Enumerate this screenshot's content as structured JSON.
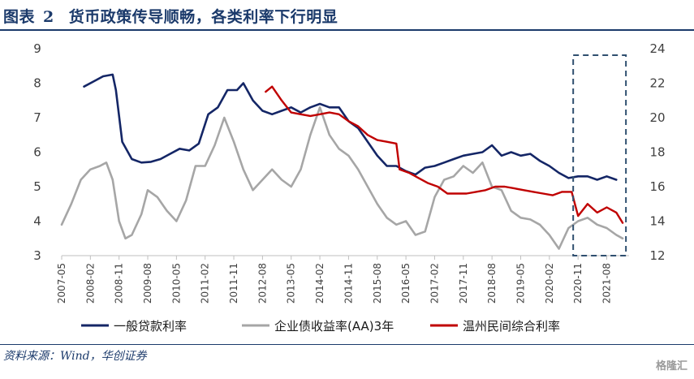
{
  "header": {
    "fig_label": "图表",
    "fig_number": "2",
    "title": "货币政策传导顺畅，各类利率下行明显"
  },
  "footer": {
    "source": "资料来源：Wind，华创证券",
    "watermark": "格隆汇"
  },
  "colors": {
    "navy": "#142666",
    "gray": "#a6a6a6",
    "red": "#c00000",
    "box": "#2f4f6f"
  },
  "chart_data": {
    "type": "line",
    "title": "货币政策传导顺畅，各类利率下行明显",
    "x_tick_labels": [
      "2007-05",
      "2008-02",
      "2008-11",
      "2009-08",
      "2010-05",
      "2011-02",
      "2011-11",
      "2012-08",
      "2013-05",
      "2014-02",
      "2014-11",
      "2015-08",
      "2016-05",
      "2017-02",
      "2017-11",
      "2018-08",
      "2019-05",
      "2020-02",
      "2020-11",
      "2021-08"
    ],
    "x_range": [
      "2007-05",
      "2022-03"
    ],
    "y_left": {
      "range": [
        3,
        9
      ],
      "ticks": [
        3,
        4,
        5,
        6,
        7,
        8,
        9
      ]
    },
    "y_right": {
      "range": [
        12,
        24
      ],
      "ticks": [
        12,
        14,
        16,
        18,
        20,
        22,
        24
      ]
    },
    "legend": {
      "position": "bottom"
    },
    "highlight_box": {
      "x_range": [
        "2020-11",
        "2022-01"
      ]
    },
    "series": [
      {
        "name": "一般贷款利率",
        "axis": "left",
        "color": "#142666",
        "points": [
          [
            "2007-12",
            7.9
          ],
          [
            "2008-03",
            8.05
          ],
          [
            "2008-06",
            8.2
          ],
          [
            "2008-09",
            8.25
          ],
          [
            "2008-10",
            7.8
          ],
          [
            "2008-12",
            6.3
          ],
          [
            "2009-03",
            5.8
          ],
          [
            "2009-06",
            5.7
          ],
          [
            "2009-09",
            5.72
          ],
          [
            "2009-12",
            5.8
          ],
          [
            "2010-03",
            5.95
          ],
          [
            "2010-06",
            6.1
          ],
          [
            "2010-09",
            6.05
          ],
          [
            "2010-12",
            6.25
          ],
          [
            "2011-03",
            7.1
          ],
          [
            "2011-06",
            7.3
          ],
          [
            "2011-09",
            7.8
          ],
          [
            "2011-12",
            7.8
          ],
          [
            "2012-02",
            8.0
          ],
          [
            "2012-05",
            7.5
          ],
          [
            "2012-08",
            7.2
          ],
          [
            "2012-11",
            7.1
          ],
          [
            "2013-02",
            7.2
          ],
          [
            "2013-05",
            7.3
          ],
          [
            "2013-08",
            7.15
          ],
          [
            "2013-11",
            7.3
          ],
          [
            "2014-02",
            7.4
          ],
          [
            "2014-05",
            7.3
          ],
          [
            "2014-08",
            7.3
          ],
          [
            "2014-11",
            6.9
          ],
          [
            "2015-02",
            6.7
          ],
          [
            "2015-05",
            6.3
          ],
          [
            "2015-08",
            5.9
          ],
          [
            "2015-11",
            5.6
          ],
          [
            "2016-02",
            5.6
          ],
          [
            "2016-05",
            5.45
          ],
          [
            "2016-08",
            5.35
          ],
          [
            "2016-11",
            5.55
          ],
          [
            "2017-02",
            5.6
          ],
          [
            "2017-05",
            5.7
          ],
          [
            "2017-08",
            5.8
          ],
          [
            "2017-11",
            5.9
          ],
          [
            "2018-02",
            5.95
          ],
          [
            "2018-05",
            6.0
          ],
          [
            "2018-08",
            6.2
          ],
          [
            "2018-11",
            5.9
          ],
          [
            "2019-02",
            6.0
          ],
          [
            "2019-05",
            5.9
          ],
          [
            "2019-08",
            5.95
          ],
          [
            "2019-11",
            5.75
          ],
          [
            "2020-02",
            5.6
          ],
          [
            "2020-05",
            5.4
          ],
          [
            "2020-08",
            5.25
          ],
          [
            "2020-11",
            5.3
          ],
          [
            "2021-02",
            5.3
          ],
          [
            "2021-05",
            5.2
          ],
          [
            "2021-08",
            5.3
          ],
          [
            "2021-11",
            5.2
          ]
        ]
      },
      {
        "name": "企业债收益率(AA)3年",
        "axis": "left",
        "color": "#a6a6a6",
        "points": [
          [
            "2007-05",
            3.9
          ],
          [
            "2007-08",
            4.5
          ],
          [
            "2007-11",
            5.2
          ],
          [
            "2008-02",
            5.5
          ],
          [
            "2008-05",
            5.6
          ],
          [
            "2008-07",
            5.7
          ],
          [
            "2008-09",
            5.2
          ],
          [
            "2008-11",
            4.0
          ],
          [
            "2009-01",
            3.5
          ],
          [
            "2009-03",
            3.6
          ],
          [
            "2009-06",
            4.2
          ],
          [
            "2009-08",
            4.9
          ],
          [
            "2009-11",
            4.7
          ],
          [
            "2010-02",
            4.3
          ],
          [
            "2010-05",
            4.0
          ],
          [
            "2010-08",
            4.6
          ],
          [
            "2010-11",
            5.6
          ],
          [
            "2011-02",
            5.6
          ],
          [
            "2011-05",
            6.2
          ],
          [
            "2011-08",
            7.0
          ],
          [
            "2011-11",
            6.3
          ],
          [
            "2012-02",
            5.5
          ],
          [
            "2012-05",
            4.9
          ],
          [
            "2012-08",
            5.2
          ],
          [
            "2012-11",
            5.5
          ],
          [
            "2013-02",
            5.2
          ],
          [
            "2013-05",
            5.0
          ],
          [
            "2013-08",
            5.5
          ],
          [
            "2013-11",
            6.5
          ],
          [
            "2014-02",
            7.3
          ],
          [
            "2014-05",
            6.5
          ],
          [
            "2014-08",
            6.1
          ],
          [
            "2014-11",
            5.9
          ],
          [
            "2015-02",
            5.5
          ],
          [
            "2015-05",
            5.0
          ],
          [
            "2015-08",
            4.5
          ],
          [
            "2015-11",
            4.1
          ],
          [
            "2016-02",
            3.9
          ],
          [
            "2016-05",
            4.0
          ],
          [
            "2016-08",
            3.6
          ],
          [
            "2016-11",
            3.7
          ],
          [
            "2017-02",
            4.7
          ],
          [
            "2017-05",
            5.2
          ],
          [
            "2017-08",
            5.3
          ],
          [
            "2017-11",
            5.6
          ],
          [
            "2018-02",
            5.4
          ],
          [
            "2018-05",
            5.7
          ],
          [
            "2018-08",
            5.0
          ],
          [
            "2018-11",
            4.9
          ],
          [
            "2019-02",
            4.3
          ],
          [
            "2019-05",
            4.1
          ],
          [
            "2019-08",
            4.05
          ],
          [
            "2019-11",
            3.9
          ],
          [
            "2020-02",
            3.6
          ],
          [
            "2020-05",
            3.2
          ],
          [
            "2020-08",
            3.8
          ],
          [
            "2020-11",
            4.0
          ],
          [
            "2021-02",
            4.1
          ],
          [
            "2021-05",
            3.9
          ],
          [
            "2021-08",
            3.8
          ],
          [
            "2021-11",
            3.6
          ],
          [
            "2022-01",
            3.5
          ]
        ]
      },
      {
        "name": "温州民间综合利率",
        "axis": "right",
        "color": "#c00000",
        "points": [
          [
            "2012-09",
            21.5
          ],
          [
            "2012-11",
            21.8
          ],
          [
            "2013-02",
            21.0
          ],
          [
            "2013-05",
            20.3
          ],
          [
            "2013-08",
            20.2
          ],
          [
            "2013-11",
            20.1
          ],
          [
            "2014-02",
            20.2
          ],
          [
            "2014-05",
            20.3
          ],
          [
            "2014-08",
            20.2
          ],
          [
            "2014-11",
            19.8
          ],
          [
            "2015-02",
            19.5
          ],
          [
            "2015-05",
            19.0
          ],
          [
            "2015-08",
            18.7
          ],
          [
            "2015-11",
            18.6
          ],
          [
            "2016-02",
            18.5
          ],
          [
            "2016-03",
            17.0
          ],
          [
            "2016-06",
            16.8
          ],
          [
            "2016-09",
            16.5
          ],
          [
            "2016-12",
            16.2
          ],
          [
            "2017-03",
            16.0
          ],
          [
            "2017-06",
            15.6
          ],
          [
            "2017-09",
            15.6
          ],
          [
            "2017-12",
            15.6
          ],
          [
            "2018-03",
            15.7
          ],
          [
            "2018-06",
            15.8
          ],
          [
            "2018-09",
            16.0
          ],
          [
            "2018-12",
            16.0
          ],
          [
            "2019-03",
            15.9
          ],
          [
            "2019-06",
            15.8
          ],
          [
            "2019-09",
            15.7
          ],
          [
            "2019-12",
            15.6
          ],
          [
            "2020-03",
            15.5
          ],
          [
            "2020-06",
            15.7
          ],
          [
            "2020-09",
            15.7
          ],
          [
            "2020-11",
            14.3
          ],
          [
            "2021-02",
            15.0
          ],
          [
            "2021-05",
            14.5
          ],
          [
            "2021-08",
            14.8
          ],
          [
            "2021-11",
            14.5
          ],
          [
            "2022-01",
            13.9
          ]
        ]
      }
    ]
  }
}
